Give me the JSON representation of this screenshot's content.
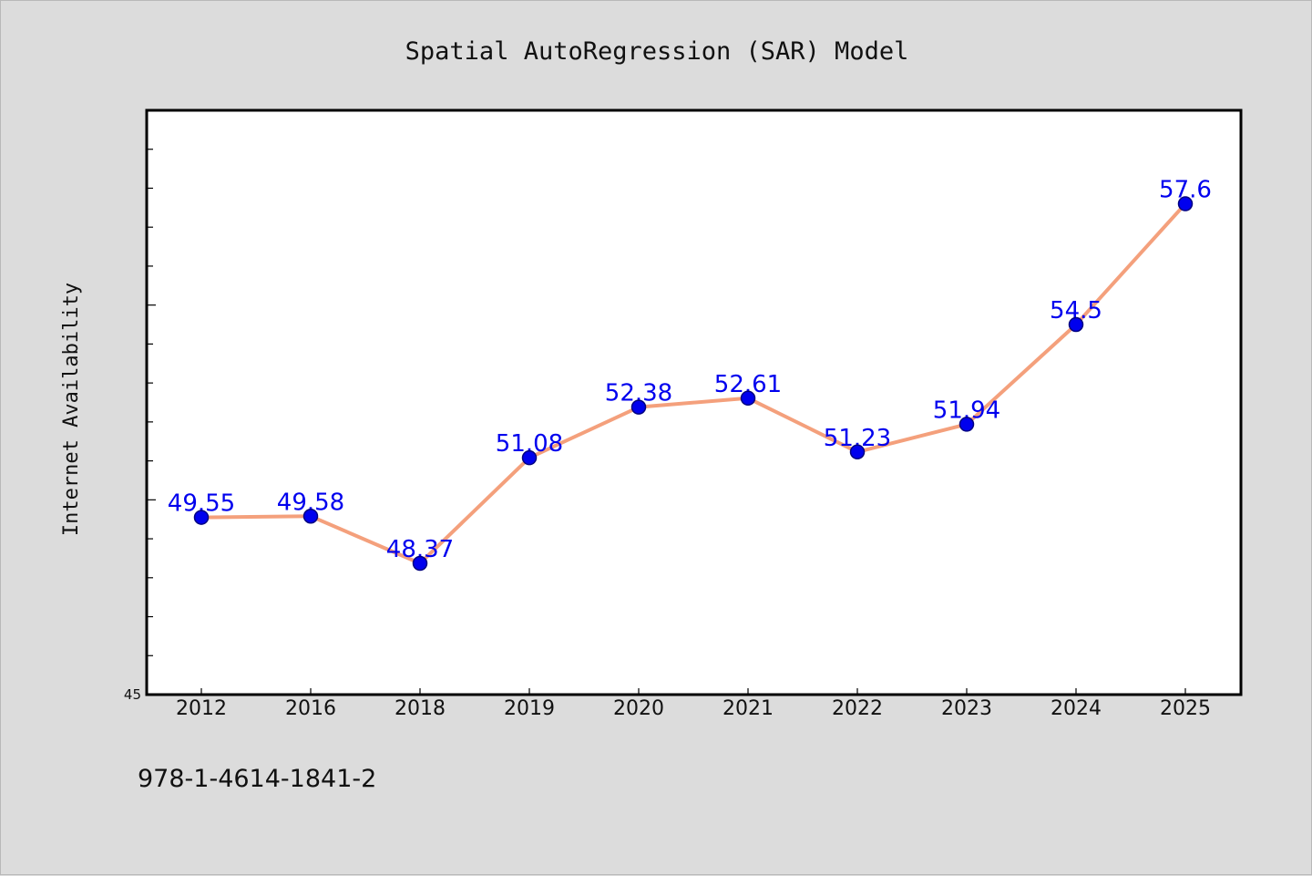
{
  "chart_data": {
    "type": "line",
    "title": "Spatial AutoRegression (SAR) Model",
    "ylabel": "Internet Availability",
    "xlabel": "",
    "categories": [
      "2012",
      "2016",
      "2018",
      "2019",
      "2020",
      "2021",
      "2022",
      "2023",
      "2024",
      "2025"
    ],
    "series": [
      {
        "values": [
          49.55,
          49.58,
          48.37,
          51.08,
          52.38,
          52.61,
          51.23,
          51.94,
          54.5,
          57.6
        ]
      }
    ],
    "data_labels": [
      "49.55",
      "49.58",
      "48.37",
      "51.08",
      "52.38",
      "52.61",
      "51.23",
      "51.94",
      "54.5",
      "57.6"
    ],
    "ylim": [
      45,
      60
    ],
    "yticks_labeled": [
      "45"
    ],
    "ytick_step_minor": 1,
    "grid": false,
    "legend": "none",
    "colors": {
      "line": "#f4a07c",
      "marker": "#0000ee",
      "marker_edge": "#000080",
      "label": "#0000ee",
      "plot_bg": "#ffffff",
      "page_bg": "#dcdcdc"
    }
  },
  "footer": {
    "isbn": "978-1-4614-1841-2"
  }
}
